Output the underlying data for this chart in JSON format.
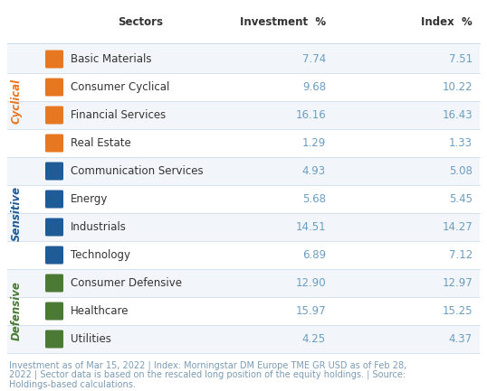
{
  "headers": [
    "Sectors",
    "Investment  %",
    "Index  %"
  ],
  "groups": [
    {
      "name": "Cyclical",
      "color": "#E87722",
      "rows": [
        {
          "sector": "Basic Materials",
          "investment": "7.74",
          "index": "7.51"
        },
        {
          "sector": "Consumer Cyclical",
          "investment": "9.68",
          "index": "10.22"
        },
        {
          "sector": "Financial Services",
          "investment": "16.16",
          "index": "16.43"
        },
        {
          "sector": "Real Estate",
          "investment": "1.29",
          "index": "1.33"
        }
      ]
    },
    {
      "name": "Sensitive",
      "color": "#1F5B96",
      "rows": [
        {
          "sector": "Communication Services",
          "investment": "4.93",
          "index": "5.08"
        },
        {
          "sector": "Energy",
          "investment": "5.68",
          "index": "5.45"
        },
        {
          "sector": "Industrials",
          "investment": "14.51",
          "index": "14.27"
        },
        {
          "sector": "Technology",
          "investment": "6.89",
          "index": "7.12"
        }
      ]
    },
    {
      "name": "Defensive",
      "color": "#4A7A35",
      "rows": [
        {
          "sector": "Consumer Defensive",
          "investment": "12.90",
          "index": "12.97"
        },
        {
          "sector": "Healthcare",
          "investment": "15.97",
          "index": "15.25"
        },
        {
          "sector": "Utilities",
          "investment": "4.25",
          "index": "4.37"
        }
      ]
    }
  ],
  "footer_lines": [
    "Investment as of Mar 15, 2022 | Index: Morningstar DM Europe TME GR USD as of Feb 28,",
    "2022 | Sector data is based on the rescaled long position of the equity holdings. | Source:",
    "Holdings-based calculations."
  ],
  "footer_color": "#7A9BB5",
  "header_color": "#333333",
  "sector_color": "#333333",
  "value_color": "#6B9DC2",
  "bg_color": "#FFFFFF",
  "line_color": "#C8D8E8",
  "header_fontsize": 8.5,
  "row_fontsize": 8.5,
  "footer_fontsize": 7.0,
  "group_label_fontsize": 8.5
}
